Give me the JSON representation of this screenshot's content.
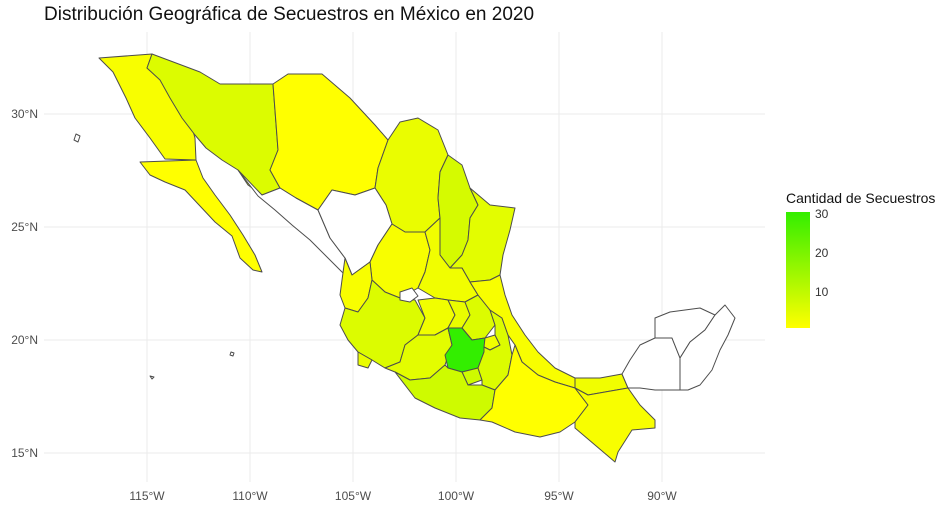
{
  "title": "Distribución Geográfica de Secuestros en México en 2020",
  "axes": {
    "x_ticks": [
      "115°W",
      "110°W",
      "105°W",
      "100°W",
      "95°W",
      "90°W"
    ],
    "y_ticks": [
      "30°N",
      "25°N",
      "20°N",
      "15°N"
    ]
  },
  "legend": {
    "title": "Cantidad de Secuestros",
    "labels": [
      "30",
      "20",
      "10"
    ],
    "color_low": "#ffff00",
    "color_high": "#33ee00",
    "placement": "right"
  },
  "colors": {
    "no_data": "#ffffff",
    "border": "#4d4d4d"
  },
  "regions": [
    {
      "name": "Baja California",
      "level": 2
    },
    {
      "name": "Baja California Sur",
      "level": 1
    },
    {
      "name": "Sonora",
      "level": 6
    },
    {
      "name": "Chihuahua",
      "level": 1
    },
    {
      "name": "Coahuila",
      "level": 4
    },
    {
      "name": "Nuevo León",
      "level": 7
    },
    {
      "name": "Tamaulipas",
      "level": 5
    },
    {
      "name": "Sinaloa",
      "level": 0
    },
    {
      "name": "Durango",
      "level": 0
    },
    {
      "name": "Zacatecas",
      "level": 2
    },
    {
      "name": "San Luis Potosí",
      "level": 3
    },
    {
      "name": "Nayarit",
      "level": 2
    },
    {
      "name": "Jalisco",
      "level": 6
    },
    {
      "name": "Aguascalientes",
      "level": 0
    },
    {
      "name": "Guanajuato",
      "level": 3
    },
    {
      "name": "Querétaro",
      "level": 4
    },
    {
      "name": "Hidalgo",
      "level": 6
    },
    {
      "name": "Veracruz",
      "level": 2
    },
    {
      "name": "Michoacán",
      "level": 5
    },
    {
      "name": "Estado de México",
      "level": 30
    },
    {
      "name": "Morelos",
      "level": 8
    },
    {
      "name": "Puebla",
      "level": 6
    },
    {
      "name": "Tlaxcala",
      "level": 3
    },
    {
      "name": "Guerrero",
      "level": 8
    },
    {
      "name": "Oaxaca",
      "level": 1
    },
    {
      "name": "Chiapas",
      "level": 2
    },
    {
      "name": "Tabasco",
      "level": 3
    },
    {
      "name": "Campeche",
      "level": 0
    },
    {
      "name": "Yucatán",
      "level": 0
    },
    {
      "name": "Quintana Roo",
      "level": 0
    },
    {
      "name": "Colima",
      "level": 4
    }
  ]
}
